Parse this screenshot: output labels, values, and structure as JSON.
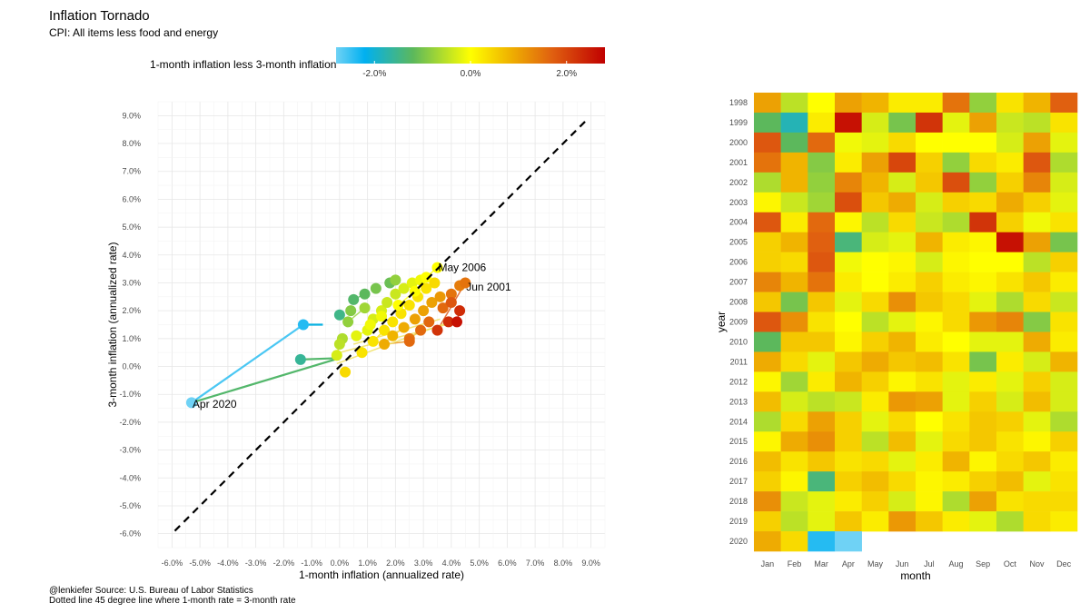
{
  "title": "Inflation Tornado",
  "subtitle": "CPI: All items less food and energy",
  "legend": {
    "label": "1-month inflation less 3-month inflation",
    "ticks": [
      {
        "value": -2.0,
        "label": "-2.0%"
      },
      {
        "value": 0.0,
        "label": "0.0%"
      },
      {
        "value": 2.0,
        "label": "2.0%"
      }
    ],
    "range": [
      -2.8,
      2.8
    ],
    "colors": [
      "#6fd2f5",
      "#00b0f0",
      "#5cb85c",
      "#ffff00",
      "#f0b400",
      "#e06010",
      "#c00000"
    ]
  },
  "caption": {
    "line1": "@lenkiefer Source: U.S. Bureau of Labor Statistics",
    "line2": "Dotted line 45 degree line where 1-month rate = 3-month rate"
  },
  "chart_data": [
    {
      "type": "scatter",
      "xlabel": "1-month inflation (annualized rate)",
      "ylabel": "3-month inflation (annualized rate)",
      "xlim": [
        -6.5,
        9.5
      ],
      "ylim": [
        -6.5,
        9.5
      ],
      "x_ticks": [
        "-6.0%",
        "-5.0%",
        "-4.0%",
        "-3.0%",
        "-2.0%",
        "-1.0%",
        "0.0%",
        "1.0%",
        "2.0%",
        "3.0%",
        "4.0%",
        "5.0%",
        "6.0%",
        "7.0%",
        "8.0%",
        "9.0%"
      ],
      "y_ticks": [
        "-6.0%",
        "-5.0%",
        "-4.0%",
        "-3.0%",
        "-2.0%",
        "-1.0%",
        "0.0%",
        "1.0%",
        "2.0%",
        "3.0%",
        "4.0%",
        "5.0%",
        "6.0%",
        "7.0%",
        "8.0%",
        "9.0%"
      ],
      "grid": true,
      "reference_line": {
        "style": "dashed",
        "from": [
          -5.9,
          -5.9
        ],
        "to": [
          8.8,
          8.8
        ]
      },
      "annotations": [
        {
          "label": "May 2006",
          "x": 3.5,
          "y": 3.55
        },
        {
          "label": "Jun 2001",
          "x": 4.5,
          "y": 2.85
        },
        {
          "label": "Apr 2020",
          "x": -5.3,
          "y": -1.35
        }
      ],
      "path": [
        {
          "x": -0.6,
          "y": 1.5
        },
        {
          "x": -1.3,
          "y": 1.5
        },
        {
          "x": -5.3,
          "y": -1.3
        },
        {
          "x": 0.0,
          "y": 0.3
        },
        {
          "x": -1.4,
          "y": 0.25
        }
      ],
      "points": [
        {
          "x": -5.3,
          "y": -1.3,
          "c": -2.8
        },
        {
          "x": -1.3,
          "y": 1.5,
          "c": -2.4
        },
        {
          "x": -1.4,
          "y": 0.25,
          "c": -1.6
        },
        {
          "x": 0.0,
          "y": 1.85,
          "c": -1.5
        },
        {
          "x": 0.5,
          "y": 2.4,
          "c": -1.3
        },
        {
          "x": 0.9,
          "y": 2.6,
          "c": -1.2
        },
        {
          "x": 1.3,
          "y": 2.8,
          "c": -1.0
        },
        {
          "x": 1.8,
          "y": 3.0,
          "c": -1.1
        },
        {
          "x": 2.0,
          "y": 3.1,
          "c": -0.8
        },
        {
          "x": 0.4,
          "y": 2.0,
          "c": -0.9
        },
        {
          "x": 0.9,
          "y": 2.1,
          "c": -0.7
        },
        {
          "x": 0.3,
          "y": 1.6,
          "c": -0.8
        },
        {
          "x": 0.1,
          "y": 1.0,
          "c": -0.6
        },
        {
          "x": 0.0,
          "y": 0.8,
          "c": -0.5
        },
        {
          "x": -0.1,
          "y": 0.4,
          "c": -0.3
        },
        {
          "x": 0.2,
          "y": -0.2,
          "c": 0.4
        },
        {
          "x": 0.6,
          "y": 1.1,
          "c": -0.2
        },
        {
          "x": 1.0,
          "y": 1.3,
          "c": -0.2
        },
        {
          "x": 1.2,
          "y": 1.7,
          "c": -0.3
        },
        {
          "x": 1.5,
          "y": 2.0,
          "c": -0.3
        },
        {
          "x": 1.7,
          "y": 2.3,
          "c": -0.4
        },
        {
          "x": 2.0,
          "y": 2.6,
          "c": -0.4
        },
        {
          "x": 2.3,
          "y": 2.8,
          "c": -0.3
        },
        {
          "x": 2.6,
          "y": 3.0,
          "c": -0.2
        },
        {
          "x": 2.9,
          "y": 3.1,
          "c": -0.1
        },
        {
          "x": 3.1,
          "y": 3.2,
          "c": 0.0
        },
        {
          "x": 3.5,
          "y": 3.55,
          "c": 0.0
        },
        {
          "x": 0.8,
          "y": 0.5,
          "c": 0.3
        },
        {
          "x": 1.2,
          "y": 0.9,
          "c": 0.3
        },
        {
          "x": 1.6,
          "y": 1.3,
          "c": 0.3
        },
        {
          "x": 1.9,
          "y": 1.6,
          "c": 0.3
        },
        {
          "x": 2.2,
          "y": 1.9,
          "c": 0.3
        },
        {
          "x": 2.5,
          "y": 2.2,
          "c": 0.3
        },
        {
          "x": 2.8,
          "y": 2.5,
          "c": 0.3
        },
        {
          "x": 3.1,
          "y": 2.8,
          "c": 0.3
        },
        {
          "x": 3.4,
          "y": 3.0,
          "c": 0.4
        },
        {
          "x": 1.5,
          "y": 1.8,
          "c": -0.1
        },
        {
          "x": 2.1,
          "y": 2.2,
          "c": 0.0
        },
        {
          "x": 2.7,
          "y": 2.7,
          "c": 0.0
        },
        {
          "x": 1.1,
          "y": 1.5,
          "c": -0.1
        },
        {
          "x": 1.9,
          "y": 1.1,
          "c": 0.8
        },
        {
          "x": 2.3,
          "y": 1.4,
          "c": 0.9
        },
        {
          "x": 2.7,
          "y": 1.7,
          "c": 1.0
        },
        {
          "x": 3.0,
          "y": 2.0,
          "c": 1.0
        },
        {
          "x": 3.3,
          "y": 2.3,
          "c": 1.0
        },
        {
          "x": 3.6,
          "y": 2.5,
          "c": 1.1
        },
        {
          "x": 2.5,
          "y": 1.0,
          "c": 1.5
        },
        {
          "x": 2.9,
          "y": 1.3,
          "c": 1.6
        },
        {
          "x": 3.2,
          "y": 1.6,
          "c": 1.6
        },
        {
          "x": 3.7,
          "y": 2.1,
          "c": 1.6
        },
        {
          "x": 4.0,
          "y": 2.6,
          "c": 1.5
        },
        {
          "x": 4.3,
          "y": 2.9,
          "c": 1.4
        },
        {
          "x": 4.5,
          "y": 3.0,
          "c": 1.5
        },
        {
          "x": 3.5,
          "y": 1.3,
          "c": 2.2
        },
        {
          "x": 3.9,
          "y": 1.6,
          "c": 2.3
        },
        {
          "x": 4.2,
          "y": 1.6,
          "c": 2.6
        },
        {
          "x": 4.3,
          "y": 2.0,
          "c": 2.3
        },
        {
          "x": 4.0,
          "y": 2.3,
          "c": 1.8
        },
        {
          "x": 1.6,
          "y": 0.8,
          "c": 0.9
        },
        {
          "x": 2.5,
          "y": 0.9,
          "c": 1.6
        }
      ]
    },
    {
      "type": "heatmap",
      "xlabel": "month",
      "ylabel": "year",
      "x_categories": [
        "Jan",
        "Feb",
        "Mar",
        "Apr",
        "May",
        "Jun",
        "Jul",
        "Aug",
        "Sep",
        "Oct",
        "Nov",
        "Dec"
      ],
      "y_categories": [
        "1998",
        "1999",
        "2000",
        "2001",
        "2002",
        "2003",
        "2004",
        "2005",
        "2006",
        "2007",
        "2008",
        "2009",
        "2010",
        "2011",
        "2012",
        "2013",
        "2014",
        "2015",
        "2016",
        "2017",
        "2018",
        "2019",
        "2020"
      ],
      "values": [
        [
          1.0,
          -0.5,
          0.0,
          1.0,
          0.8,
          0.2,
          0.2,
          1.5,
          -0.8,
          0.3,
          0.8,
          1.7
        ],
        [
          -1.2,
          -1.8,
          0.2,
          2.6,
          -0.3,
          -1.0,
          2.2,
          -0.2,
          1.0,
          -0.4,
          -0.5,
          0.3
        ],
        [
          1.8,
          -1.2,
          1.6,
          -0.1,
          -0.2,
          0.4,
          0.0,
          0.0,
          0.0,
          -0.3,
          1.0,
          -0.2
        ],
        [
          1.5,
          0.8,
          -0.9,
          0.2,
          1.0,
          2.0,
          0.5,
          -0.8,
          0.4,
          0.2,
          1.8,
          -0.6
        ],
        [
          -0.6,
          0.8,
          -0.8,
          1.3,
          0.8,
          -0.3,
          0.6,
          1.9,
          -0.8,
          0.5,
          1.3,
          -0.3
        ],
        [
          0.1,
          -0.4,
          -0.7,
          1.9,
          0.6,
          0.9,
          -0.3,
          0.5,
          0.4,
          0.9,
          0.5,
          -0.2
        ],
        [
          1.8,
          0.2,
          1.6,
          0.1,
          -0.5,
          0.4,
          -0.4,
          -0.6,
          2.2,
          0.5,
          -0.1,
          0.3
        ],
        [
          0.5,
          0.8,
          1.7,
          -1.4,
          -0.3,
          -0.2,
          0.8,
          0.2,
          0.1,
          2.6,
          1.0,
          -1.0
        ],
        [
          0.5,
          0.4,
          1.8,
          -0.1,
          0.0,
          0.1,
          -0.3,
          0.1,
          0.0,
          0.0,
          -0.5,
          0.5
        ],
        [
          1.3,
          0.8,
          1.5,
          0.2,
          0.0,
          0.2,
          0.5,
          0.2,
          0.1,
          0.3,
          0.6,
          0.2
        ],
        [
          0.6,
          -1.0,
          0.6,
          -0.2,
          0.4,
          1.2,
          0.6,
          0.4,
          -0.2,
          -0.6,
          0.4,
          -0.4
        ],
        [
          1.8,
          1.2,
          0.3,
          0.0,
          -0.5,
          -0.2,
          0.1,
          0.4,
          1.1,
          1.3,
          -0.9,
          0.3
        ],
        [
          -1.2,
          0.6,
          0.6,
          0.1,
          0.5,
          0.8,
          0.2,
          0.0,
          -0.2,
          -0.2,
          0.9,
          0.2
        ],
        [
          0.9,
          0.4,
          -0.2,
          0.6,
          0.9,
          0.6,
          0.7,
          0.3,
          -1.0,
          0.2,
          -0.3,
          0.8
        ],
        [
          0.1,
          -0.7,
          0.2,
          0.8,
          0.5,
          0.1,
          0.3,
          -0.2,
          0.2,
          -0.2,
          0.5,
          -0.3
        ],
        [
          0.7,
          -0.3,
          -0.5,
          -0.4,
          0.2,
          1.1,
          1.0,
          -0.2,
          0.5,
          -0.3,
          0.7,
          -0.3
        ],
        [
          -0.6,
          0.4,
          1.0,
          0.5,
          -0.2,
          0.4,
          0.0,
          0.3,
          0.6,
          0.5,
          -0.2,
          -0.6
        ],
        [
          0.1,
          0.9,
          1.2,
          0.5,
          -0.5,
          0.7,
          -0.2,
          0.4,
          0.6,
          0.3,
          0.1,
          0.5
        ],
        [
          0.7,
          0.3,
          0.6,
          0.3,
          0.4,
          -0.2,
          0.2,
          0.8,
          0.1,
          0.4,
          0.6,
          0.2
        ],
        [
          0.5,
          0.1,
          -1.4,
          0.5,
          0.7,
          0.4,
          0.1,
          0.2,
          0.5,
          0.7,
          -0.2,
          0.3
        ],
        [
          1.2,
          -0.4,
          -0.2,
          0.2,
          0.5,
          -0.3,
          0.1,
          -0.6,
          1.0,
          0.3,
          0.4,
          0.4
        ],
        [
          0.5,
          -0.5,
          -0.2,
          0.6,
          0.2,
          1.1,
          0.6,
          0.2,
          -0.2,
          -0.6,
          0.4,
          0.2
        ],
        [
          0.9,
          0.4,
          -2.4,
          -2.8,
          null,
          null,
          null,
          null,
          null,
          null,
          null,
          null
        ]
      ]
    }
  ]
}
